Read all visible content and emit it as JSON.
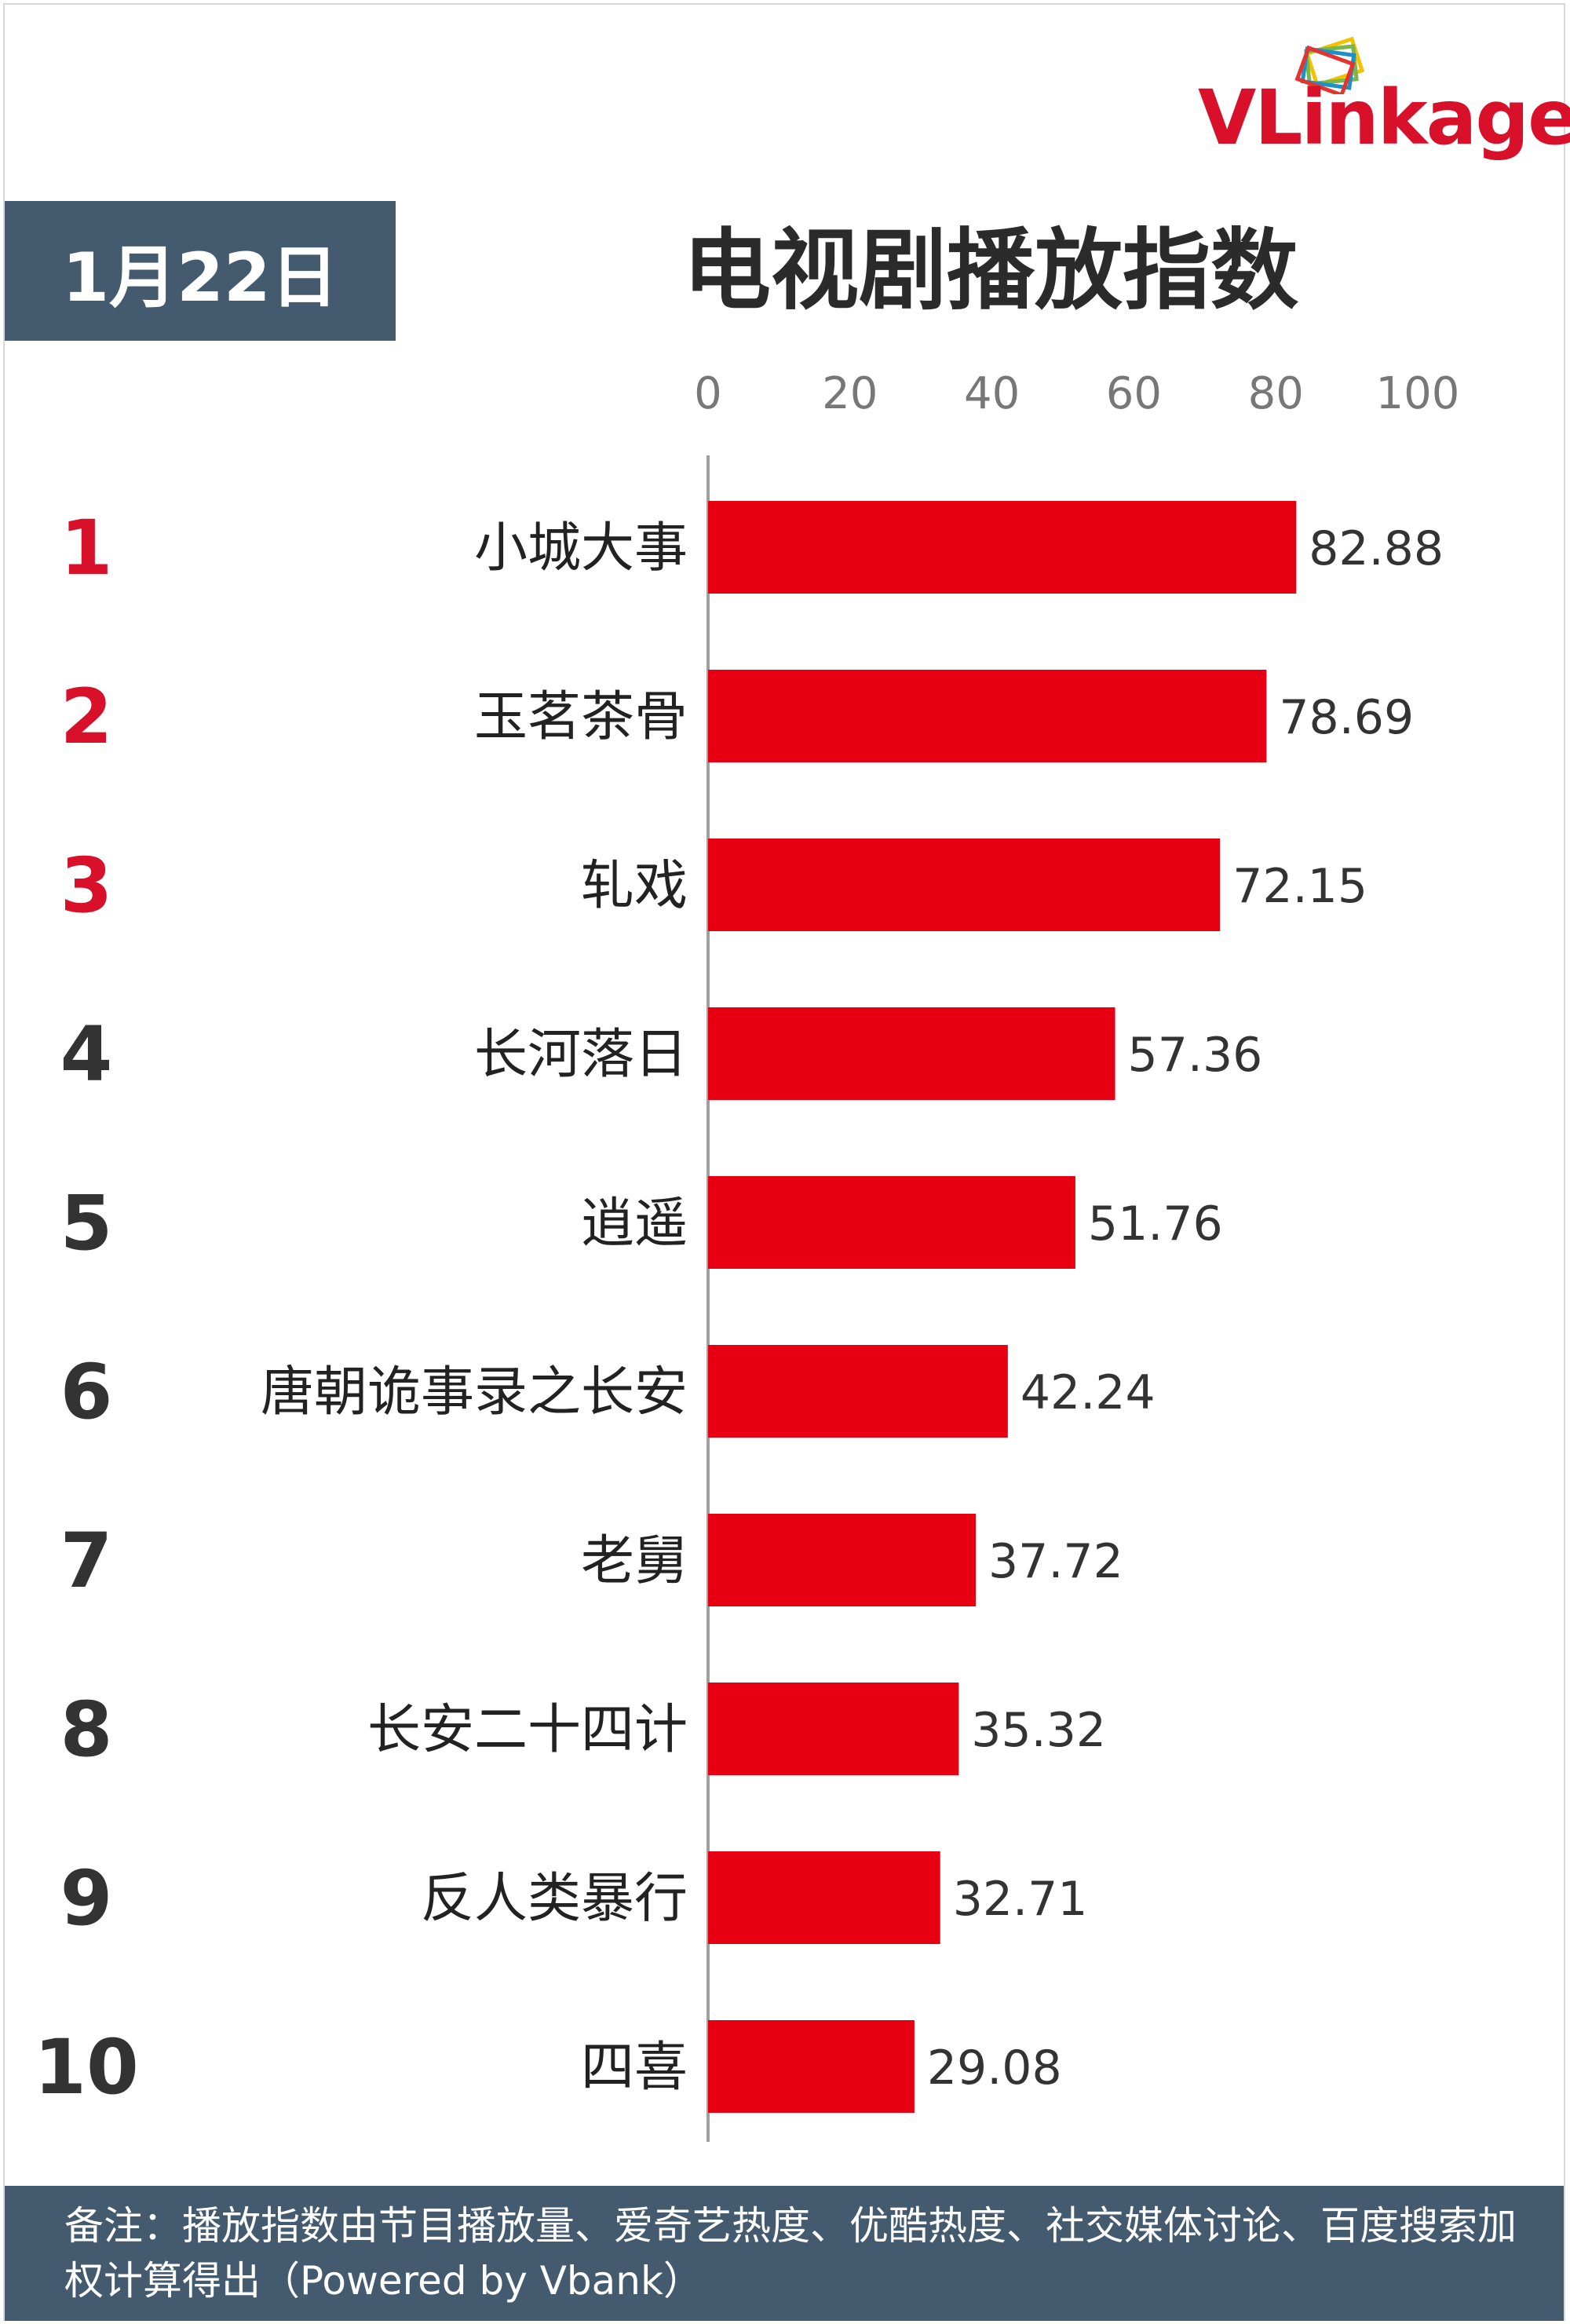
{
  "brand": {
    "logo_text": "VLinkage",
    "logo_text_first": "V",
    "logo_text_rest": "Linkage"
  },
  "date_label": "1月22日",
  "title": "电视剧播放指数",
  "footnote": "备注：播放指数由节目播放量、爱奇艺热度、优酷热度、社交媒体讨论、百度搜索加权计算得出（Powered by Vbank）",
  "colors": {
    "bar": "#e60012",
    "rank_top3": "#d9102a",
    "rank_other": "#333333",
    "header_bg": "#435a6f"
  },
  "chart_data": {
    "type": "bar",
    "orientation": "horizontal",
    "title": "电视剧播放指数",
    "xlim": [
      0,
      100
    ],
    "x_ticks": [
      0,
      20,
      40,
      60,
      80,
      100
    ],
    "grid": false,
    "ranks": [
      "1",
      "2",
      "3",
      "4",
      "5",
      "6",
      "7",
      "8",
      "9",
      "10"
    ],
    "categories": [
      "小城大事",
      "玉茗茶骨",
      "轧戏",
      "长河落日",
      "逍遥",
      "唐朝诡事录之长安",
      "老舅",
      "长安二十四计",
      "反人类暴行",
      "四喜"
    ],
    "values": [
      82.88,
      78.69,
      72.15,
      57.36,
      51.76,
      42.24,
      37.72,
      35.32,
      32.71,
      29.08
    ],
    "value_labels": [
      "82.88",
      "78.69",
      "72.15",
      "57.36",
      "51.76",
      "42.24",
      "37.72",
      "35.32",
      "32.71",
      "29.08"
    ]
  }
}
